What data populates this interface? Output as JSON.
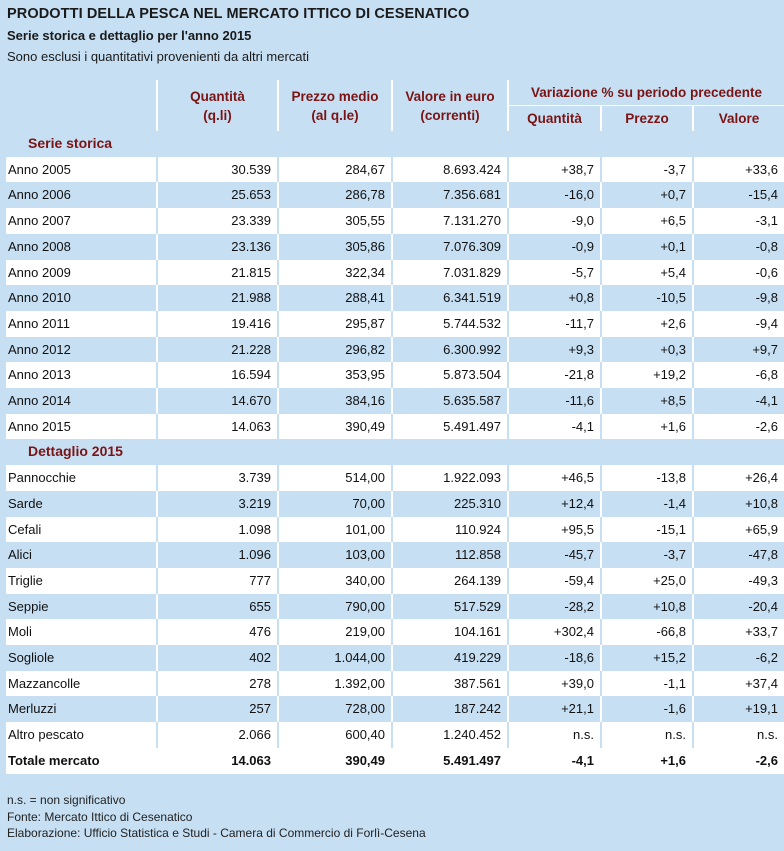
{
  "title": "PRODOTTI DELLA PESCA NEL MERCATO ITTICO DI CESENATICO",
  "subtitle": "Serie storica e dettaglio per l'anno 2015",
  "subtitle2": "Sono esclusi i quantitativi provenienti da altri mercati",
  "header": {
    "quantita_1": "Quantità",
    "quantita_2": "(q.li)",
    "prezzo_1": "Prezzo medio",
    "prezzo_2": "(al q.le)",
    "valore_1": "Valore in euro",
    "valore_2": "(correnti)",
    "variazione": "Variazione % su periodo precedente",
    "var_quantita": "Quantità",
    "var_prezzo": "Prezzo",
    "var_valore": "Valore"
  },
  "section1": "Serie storica",
  "section2": "Dettaglio 2015",
  "rows_serie": [
    {
      "label": "Anno 2005",
      "q": "30.539",
      "p": "284,67",
      "v": "8.693.424",
      "vq": "+38,7",
      "vp": "-3,7",
      "vv": "+33,6"
    },
    {
      "label": "Anno 2006",
      "q": "25.653",
      "p": "286,78",
      "v": "7.356.681",
      "vq": "-16,0",
      "vp": "+0,7",
      "vv": "-15,4"
    },
    {
      "label": "Anno 2007",
      "q": "23.339",
      "p": "305,55",
      "v": "7.131.270",
      "vq": "-9,0",
      "vp": "+6,5",
      "vv": "-3,1"
    },
    {
      "label": "Anno 2008",
      "q": "23.136",
      "p": "305,86",
      "v": "7.076.309",
      "vq": "-0,9",
      "vp": "+0,1",
      "vv": "-0,8"
    },
    {
      "label": "Anno 2009",
      "q": "21.815",
      "p": "322,34",
      "v": "7.031.829",
      "vq": "-5,7",
      "vp": "+5,4",
      "vv": "-0,6"
    },
    {
      "label": "Anno 2010",
      "q": "21.988",
      "p": "288,41",
      "v": "6.341.519",
      "vq": "+0,8",
      "vp": "-10,5",
      "vv": "-9,8"
    },
    {
      "label": "Anno 2011",
      "q": "19.416",
      "p": "295,87",
      "v": "5.744.532",
      "vq": "-11,7",
      "vp": "+2,6",
      "vv": "-9,4"
    },
    {
      "label": "Anno 2012",
      "q": "21.228",
      "p": "296,82",
      "v": "6.300.992",
      "vq": "+9,3",
      "vp": "+0,3",
      "vv": "+9,7"
    },
    {
      "label": "Anno 2013",
      "q": "16.594",
      "p": "353,95",
      "v": "5.873.504",
      "vq": "-21,8",
      "vp": "+19,2",
      "vv": "-6,8"
    },
    {
      "label": "Anno 2014",
      "q": "14.670",
      "p": "384,16",
      "v": "5.635.587",
      "vq": "-11,6",
      "vp": "+8,5",
      "vv": "-4,1"
    },
    {
      "label": "Anno 2015",
      "q": "14.063",
      "p": "390,49",
      "v": "5.491.497",
      "vq": "-4,1",
      "vp": "+1,6",
      "vv": "-2,6"
    }
  ],
  "rows_dettaglio": [
    {
      "label": "Pannocchie",
      "q": "3.739",
      "p": "514,00",
      "v": "1.922.093",
      "vq": "+46,5",
      "vp": "-13,8",
      "vv": "+26,4"
    },
    {
      "label": "Sarde",
      "q": "3.219",
      "p": "70,00",
      "v": "225.310",
      "vq": "+12,4",
      "vp": "-1,4",
      "vv": "+10,8"
    },
    {
      "label": "Cefali",
      "q": "1.098",
      "p": "101,00",
      "v": "110.924",
      "vq": "+95,5",
      "vp": "-15,1",
      "vv": "+65,9"
    },
    {
      "label": "Alici",
      "q": "1.096",
      "p": "103,00",
      "v": "112.858",
      "vq": "-45,7",
      "vp": "-3,7",
      "vv": "-47,8"
    },
    {
      "label": "Triglie",
      "q": "777",
      "p": "340,00",
      "v": "264.139",
      "vq": "-59,4",
      "vp": "+25,0",
      "vv": "-49,3"
    },
    {
      "label": "Seppie",
      "q": "655",
      "p": "790,00",
      "v": "517.529",
      "vq": "-28,2",
      "vp": "+10,8",
      "vv": "-20,4"
    },
    {
      "label": "Moli",
      "q": "476",
      "p": "219,00",
      "v": "104.161",
      "vq": "+302,4",
      "vp": "-66,8",
      "vv": "+33,7"
    },
    {
      "label": "Sogliole",
      "q": "402",
      "p": "1.044,00",
      "v": "419.229",
      "vq": "-18,6",
      "vp": "+15,2",
      "vv": "-6,2"
    },
    {
      "label": "Mazzancolle",
      "q": "278",
      "p": "1.392,00",
      "v": "387.561",
      "vq": "+39,0",
      "vp": "-1,1",
      "vv": "+37,4"
    },
    {
      "label": "Merluzzi",
      "q": "257",
      "p": "728,00",
      "v": "187.242",
      "vq": "+21,1",
      "vp": "-1,6",
      "vv": "+19,1"
    },
    {
      "label": "Altro pescato",
      "q": "2.066",
      "p": "600,40",
      "v": "1.240.452",
      "vq": "n.s.",
      "vp": "n.s.",
      "vv": "n.s."
    }
  ],
  "total": {
    "label": "Totale mercato",
    "q": "14.063",
    "p": "390,49",
    "v": "5.491.497",
    "vq": "-4,1",
    "vp": "+1,6",
    "vv": "-2,6"
  },
  "notes": [
    "n.s. = non significativo",
    "Fonte: Mercato Ittico di Cesenatico",
    "Elaborazione: Ufficio Statistica e Studi - Camera di Commercio di Forlì-Cesena"
  ]
}
